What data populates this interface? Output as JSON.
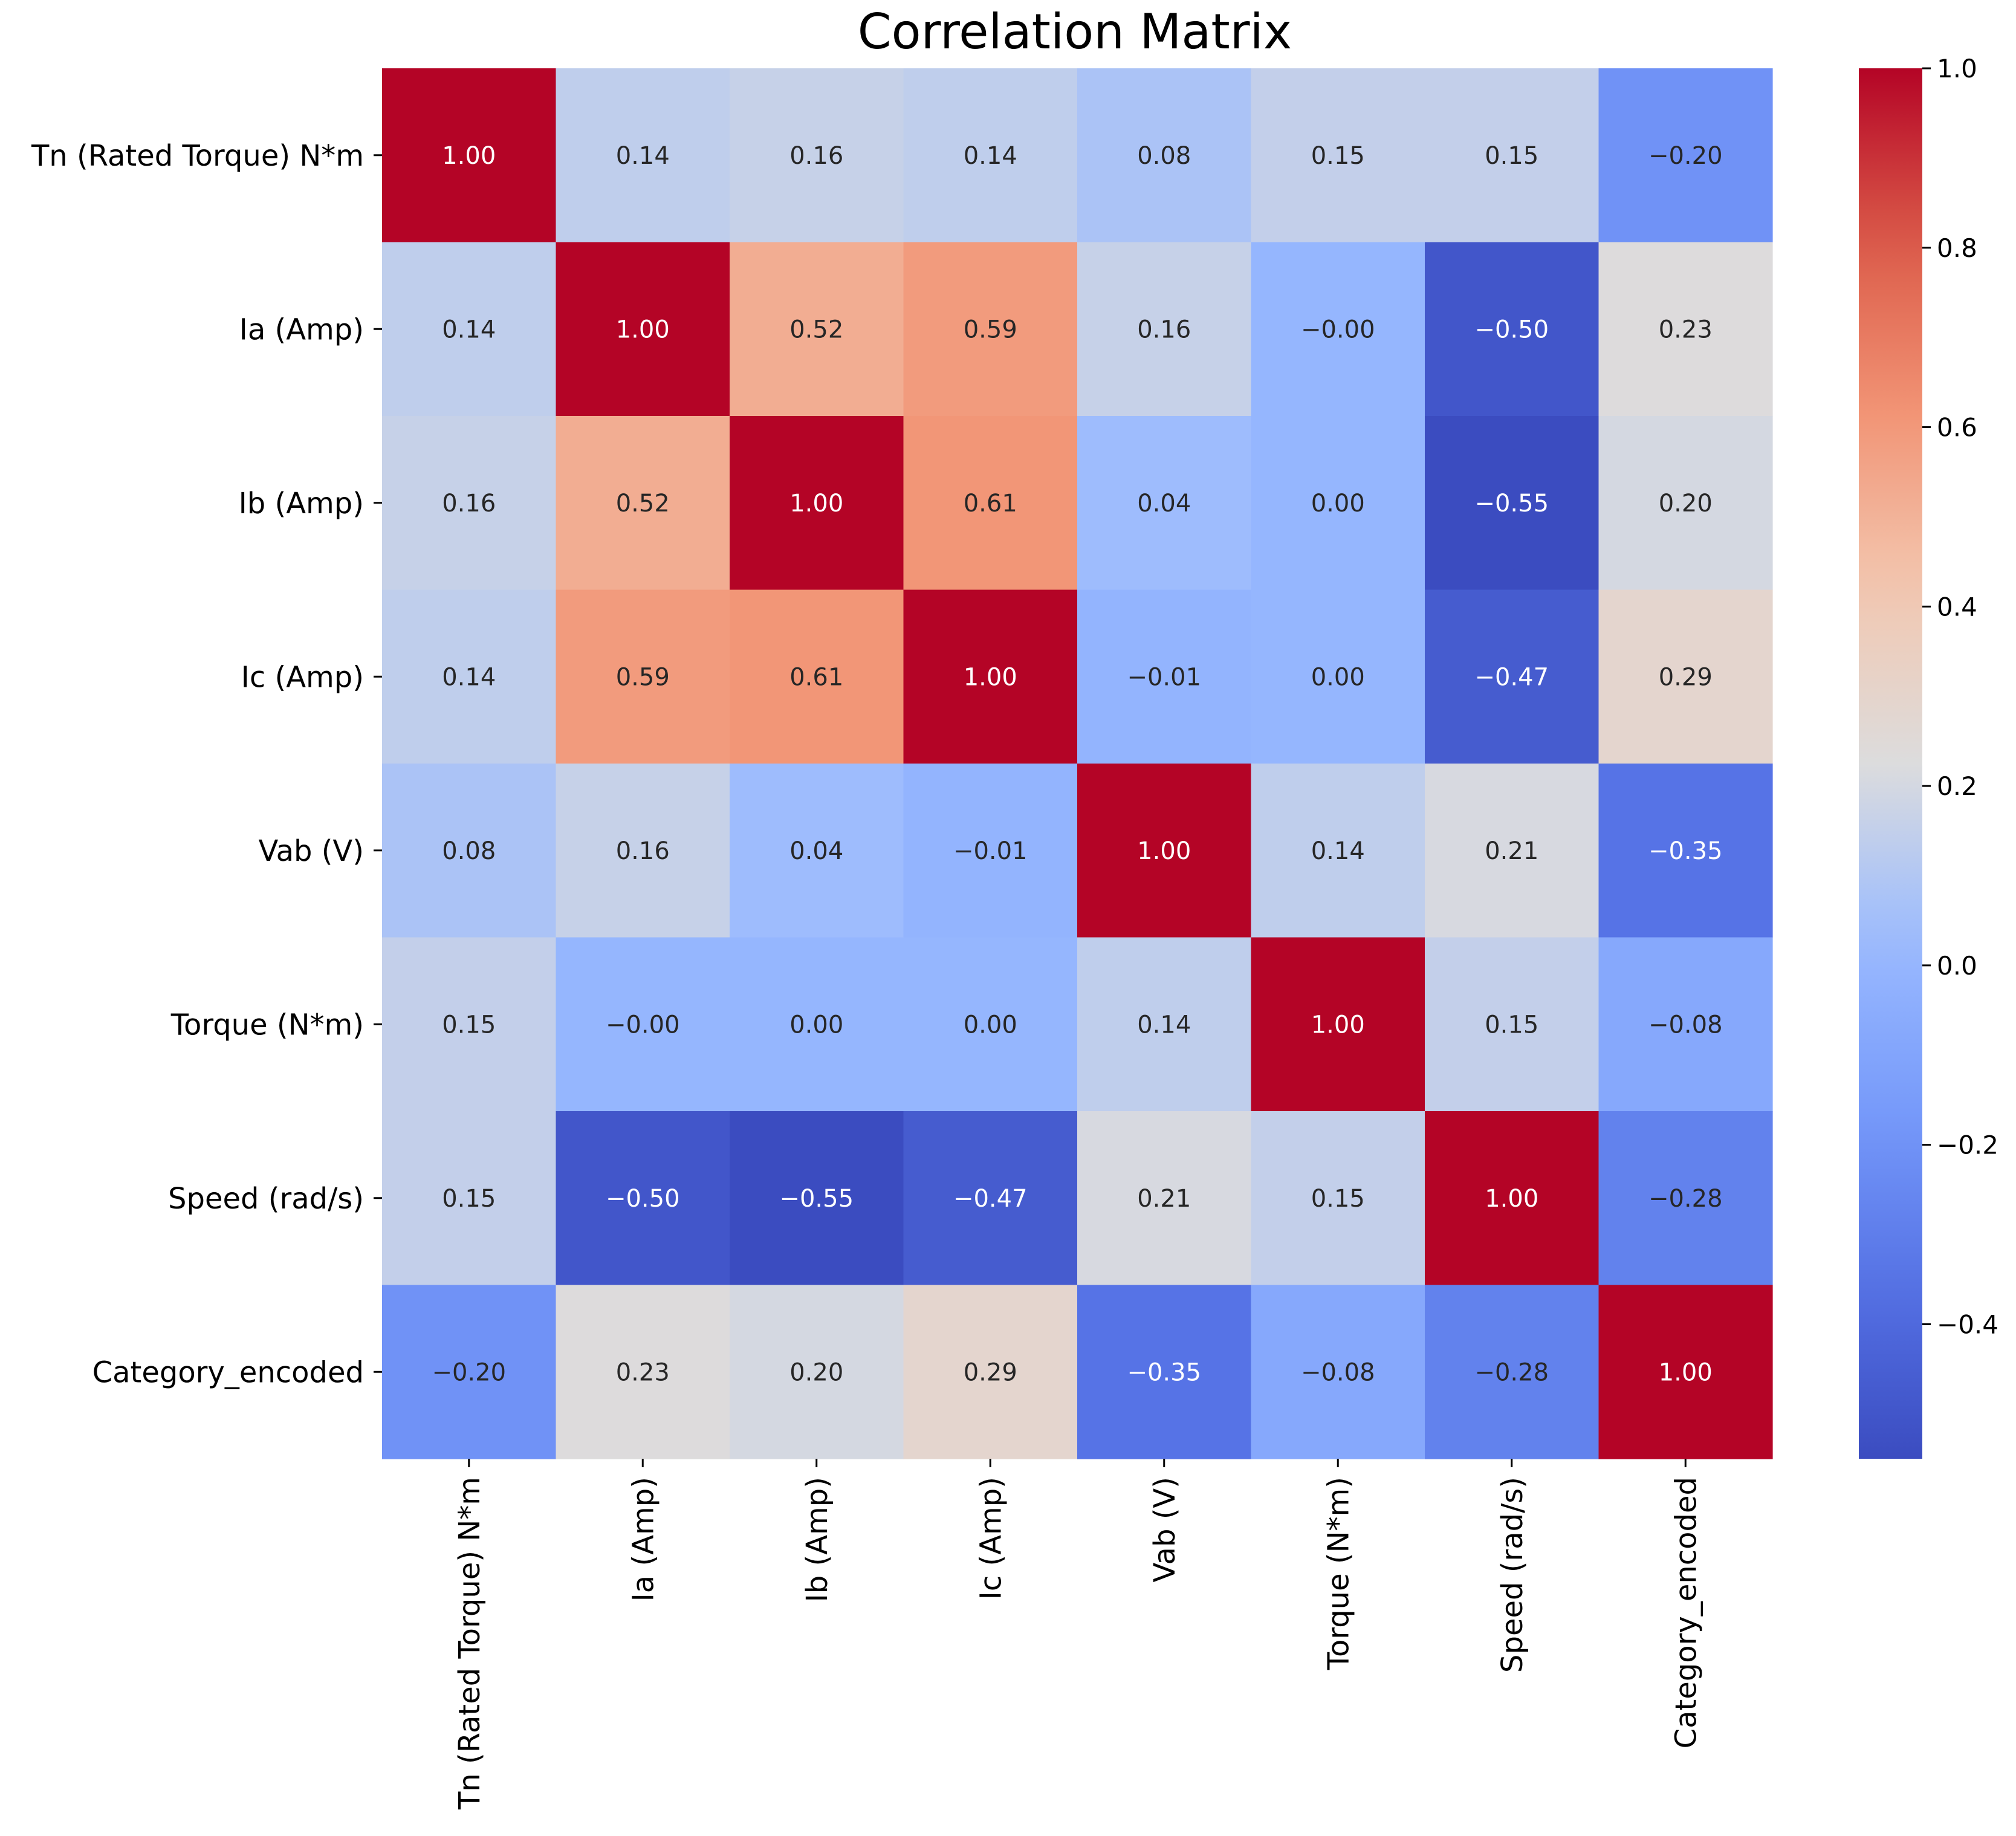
{
  "chart_data": {
    "type": "heatmap",
    "title": "Correlation Matrix",
    "xlabel": "",
    "ylabel": "",
    "row_labels": [
      "Tn (Rated Torque) N*m",
      "Ia (Amp)",
      "Ib (Amp)",
      "Ic (Amp)",
      "Vab (V)",
      "Torque (N*m)",
      "Speed (rad/s)",
      "Category_encoded"
    ],
    "col_labels": [
      "Tn (Rated Torque) N*m",
      "Ia (Amp)",
      "Ib (Amp)",
      "Ic (Amp)",
      "Vab (V)",
      "Torque (N*m)",
      "Speed (rad/s)",
      "Category_encoded"
    ],
    "values": [
      [
        1.0,
        0.14,
        0.16,
        0.14,
        0.08,
        0.15,
        0.15,
        -0.2
      ],
      [
        0.14,
        1.0,
        0.52,
        0.59,
        0.16,
        -0.0,
        -0.5,
        0.23
      ],
      [
        0.16,
        0.52,
        1.0,
        0.61,
        0.04,
        0.0,
        -0.55,
        0.2
      ],
      [
        0.14,
        0.59,
        0.61,
        1.0,
        -0.01,
        0.0,
        -0.47,
        0.29
      ],
      [
        0.08,
        0.16,
        0.04,
        -0.01,
        1.0,
        0.14,
        0.21,
        -0.35
      ],
      [
        0.15,
        -0.0,
        0.0,
        0.0,
        0.14,
        1.0,
        0.15,
        -0.08
      ],
      [
        0.15,
        -0.5,
        -0.55,
        -0.47,
        0.21,
        0.15,
        1.0,
        -0.28
      ],
      [
        -0.2,
        0.23,
        0.2,
        0.29,
        -0.35,
        -0.08,
        -0.28,
        1.0
      ]
    ],
    "annotations": [
      [
        "1.00",
        "0.14",
        "0.16",
        "0.14",
        "0.08",
        "0.15",
        "0.15",
        "−0.20"
      ],
      [
        "0.14",
        "1.00",
        "0.52",
        "0.59",
        "0.16",
        "−0.00",
        "−0.50",
        "0.23"
      ],
      [
        "0.16",
        "0.52",
        "1.00",
        "0.61",
        "0.04",
        "0.00",
        "−0.55",
        "0.20"
      ],
      [
        "0.14",
        "0.59",
        "0.61",
        "1.00",
        "−0.01",
        "0.00",
        "−0.47",
        "0.29"
      ],
      [
        "0.08",
        "0.16",
        "0.04",
        "−0.01",
        "1.00",
        "0.14",
        "0.21",
        "−0.35"
      ],
      [
        "0.15",
        "−0.00",
        "0.00",
        "0.00",
        "0.14",
        "1.00",
        "0.15",
        "−0.08"
      ],
      [
        "0.15",
        "−0.50",
        "−0.55",
        "−0.47",
        "0.21",
        "0.15",
        "1.00",
        "−0.28"
      ],
      [
        "−0.20",
        "0.23",
        "0.20",
        "0.29",
        "−0.35",
        "−0.08",
        "−0.28",
        "1.00"
      ]
    ],
    "colormap": "coolwarm",
    "vmin": -0.55,
    "vmax": 1.0,
    "colorbar": {
      "ticks": [
        1.0,
        0.8,
        0.6,
        0.4,
        0.2,
        0.0,
        -0.2,
        -0.4
      ],
      "tick_labels": [
        "1.0",
        "0.8",
        "0.6",
        "0.4",
        "0.2",
        "0.0",
        "−0.2",
        "−0.4"
      ]
    },
    "colors": {
      "low": "#3b4cc0",
      "mid": "#dddddd",
      "high": "#b40426"
    }
  }
}
